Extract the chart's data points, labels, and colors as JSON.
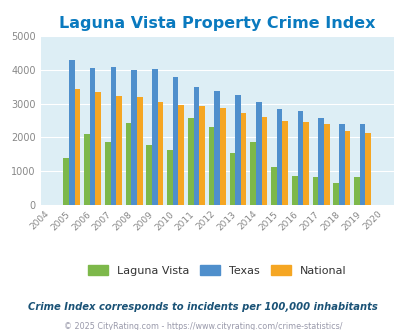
{
  "title": "Laguna Vista Property Crime Index",
  "years": [
    2004,
    2005,
    2006,
    2007,
    2008,
    2009,
    2010,
    2011,
    2012,
    2013,
    2014,
    2015,
    2016,
    2017,
    2018,
    2019,
    2020
  ],
  "laguna_vista": [
    null,
    1380,
    2090,
    1850,
    2430,
    1760,
    1620,
    2580,
    2320,
    1520,
    1870,
    1110,
    840,
    810,
    650,
    830,
    null
  ],
  "texas": [
    null,
    4300,
    4070,
    4100,
    3990,
    4020,
    3800,
    3480,
    3370,
    3260,
    3040,
    2840,
    2770,
    2560,
    2390,
    2390,
    null
  ],
  "national": [
    null,
    3440,
    3340,
    3240,
    3200,
    3040,
    2950,
    2920,
    2860,
    2730,
    2600,
    2490,
    2460,
    2390,
    2200,
    2130,
    null
  ],
  "ylim": [
    0,
    5000
  ],
  "yticks": [
    0,
    1000,
    2000,
    3000,
    4000,
    5000
  ],
  "bar_width": 0.27,
  "color_laguna": "#7db84a",
  "color_texas": "#4f8fcc",
  "color_national": "#f5a623",
  "bg_color": "#ddeef5",
  "title_color": "#0a7abf",
  "title_fontsize": 11.5,
  "legend_labels": [
    "Laguna Vista",
    "Texas",
    "National"
  ],
  "subtitle": "Crime Index corresponds to incidents per 100,000 inhabitants",
  "footer": "© 2025 CityRating.com - https://www.cityrating.com/crime-statistics/",
  "subtitle_color": "#1a5276",
  "footer_color": "#9999aa",
  "legend_text_color": "#333333",
  "tick_color": "#888888"
}
